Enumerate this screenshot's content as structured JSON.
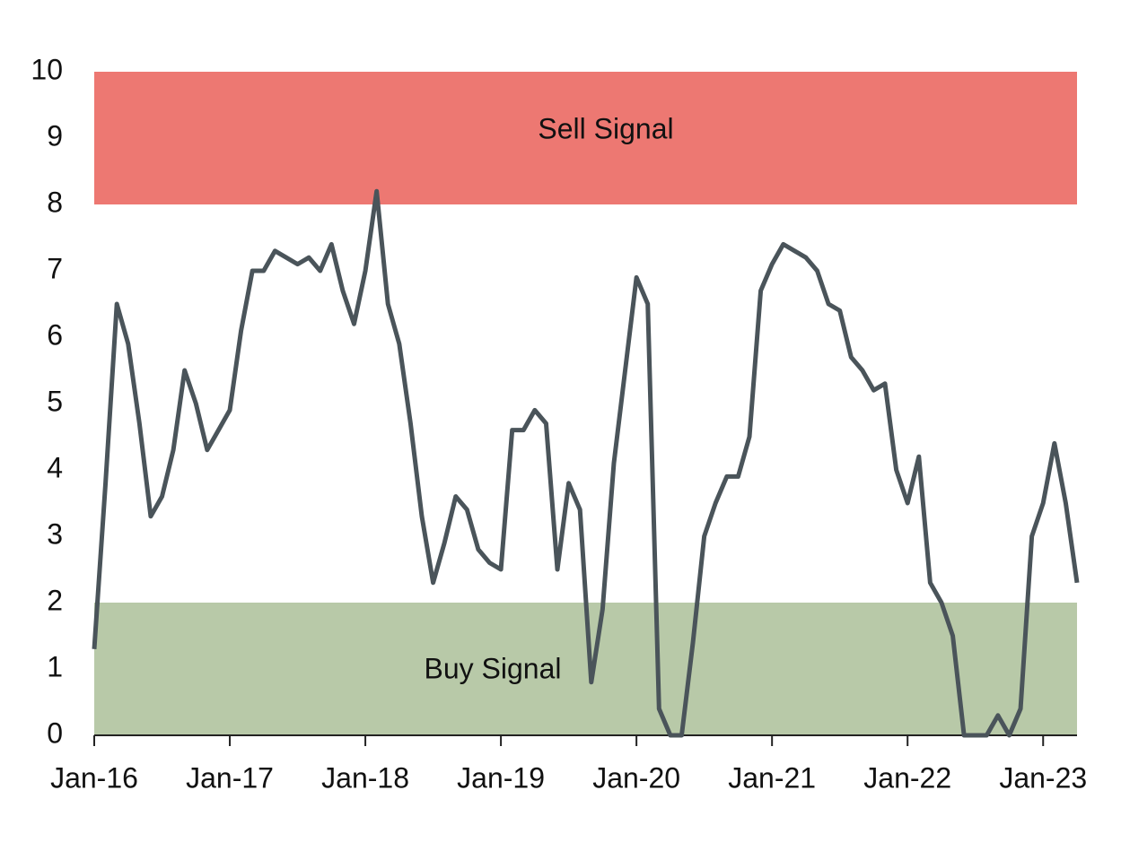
{
  "chart_data": {
    "type": "line",
    "bands": [
      {
        "label": "Sell Signal",
        "from": 8,
        "to": 10,
        "color": "#ed7872"
      },
      {
        "label": "Buy Signal",
        "from": 0,
        "to": 2,
        "color": "#b8c9a8"
      }
    ],
    "x": [
      "2016-01",
      "2016-02",
      "2016-03",
      "2016-04",
      "2016-05",
      "2016-06",
      "2016-07",
      "2016-08",
      "2016-09",
      "2016-10",
      "2016-11",
      "2016-12",
      "2017-01",
      "2017-02",
      "2017-03",
      "2017-04",
      "2017-05",
      "2017-06",
      "2017-07",
      "2017-08",
      "2017-09",
      "2017-10",
      "2017-11",
      "2017-12",
      "2018-01",
      "2018-02",
      "2018-03",
      "2018-04",
      "2018-05",
      "2018-06",
      "2018-07",
      "2018-08",
      "2018-09",
      "2018-10",
      "2018-11",
      "2018-12",
      "2019-01",
      "2019-02",
      "2019-03",
      "2019-04",
      "2019-05",
      "2019-06",
      "2019-07",
      "2019-08",
      "2019-09",
      "2019-10",
      "2019-11",
      "2019-12",
      "2020-01",
      "2020-02",
      "2020-03",
      "2020-04",
      "2020-05",
      "2020-06",
      "2020-07",
      "2020-08",
      "2020-09",
      "2020-10",
      "2020-11",
      "2020-12",
      "2021-01",
      "2021-02",
      "2021-03",
      "2021-04",
      "2021-05",
      "2021-06",
      "2021-07",
      "2021-08",
      "2021-09",
      "2021-10",
      "2021-11",
      "2021-12",
      "2022-01",
      "2022-02",
      "2022-03",
      "2022-04",
      "2022-05",
      "2022-06",
      "2022-07",
      "2022-08",
      "2022-09",
      "2022-10",
      "2022-11",
      "2022-12",
      "2023-01",
      "2023-02",
      "2023-03",
      "2023-04"
    ],
    "series": [
      {
        "color": "#4a545a",
        "values": [
          1.3,
          3.8,
          6.5,
          5.9,
          4.7,
          3.3,
          3.6,
          4.3,
          5.5,
          5.0,
          4.3,
          4.6,
          4.9,
          6.1,
          7.0,
          7.0,
          7.3,
          7.2,
          7.1,
          7.2,
          7.0,
          7.4,
          6.7,
          6.2,
          7.0,
          8.2,
          6.5,
          5.9,
          4.7,
          3.3,
          2.3,
          2.9,
          3.6,
          3.4,
          2.8,
          2.6,
          2.5,
          4.6,
          4.6,
          4.9,
          4.7,
          2.5,
          3.8,
          3.4,
          0.8,
          1.9,
          4.1,
          5.5,
          6.9,
          6.5,
          0.4,
          0,
          0,
          1.4,
          3.0,
          3.5,
          3.9,
          3.9,
          4.5,
          6.7,
          7.1,
          7.4,
          7.3,
          7.2,
          7.0,
          6.5,
          6.4,
          5.7,
          5.5,
          5.2,
          5.3,
          4.0,
          3.5,
          4.2,
          2.3,
          2.0,
          1.5,
          0,
          0,
          0,
          0.3,
          0,
          0.4,
          3.0,
          3.5,
          4.4,
          3.5,
          2.3
        ]
      }
    ],
    "xlim": [
      "2016-01",
      "2023-04"
    ],
    "xticks": [
      {
        "value": "2016-01",
        "label": "Jan-16"
      },
      {
        "value": "2017-01",
        "label": "Jan-17"
      },
      {
        "value": "2018-01",
        "label": "Jan-18"
      },
      {
        "value": "2019-01",
        "label": "Jan-19"
      },
      {
        "value": "2020-01",
        "label": "Jan-20"
      },
      {
        "value": "2021-01",
        "label": "Jan-21"
      },
      {
        "value": "2022-01",
        "label": "Jan-22"
      },
      {
        "value": "2023-01",
        "label": "Jan-23"
      }
    ],
    "ylim": [
      0,
      10
    ],
    "yticks": [
      0,
      1,
      2,
      3,
      4,
      5,
      6,
      7,
      8,
      9,
      10
    ]
  }
}
